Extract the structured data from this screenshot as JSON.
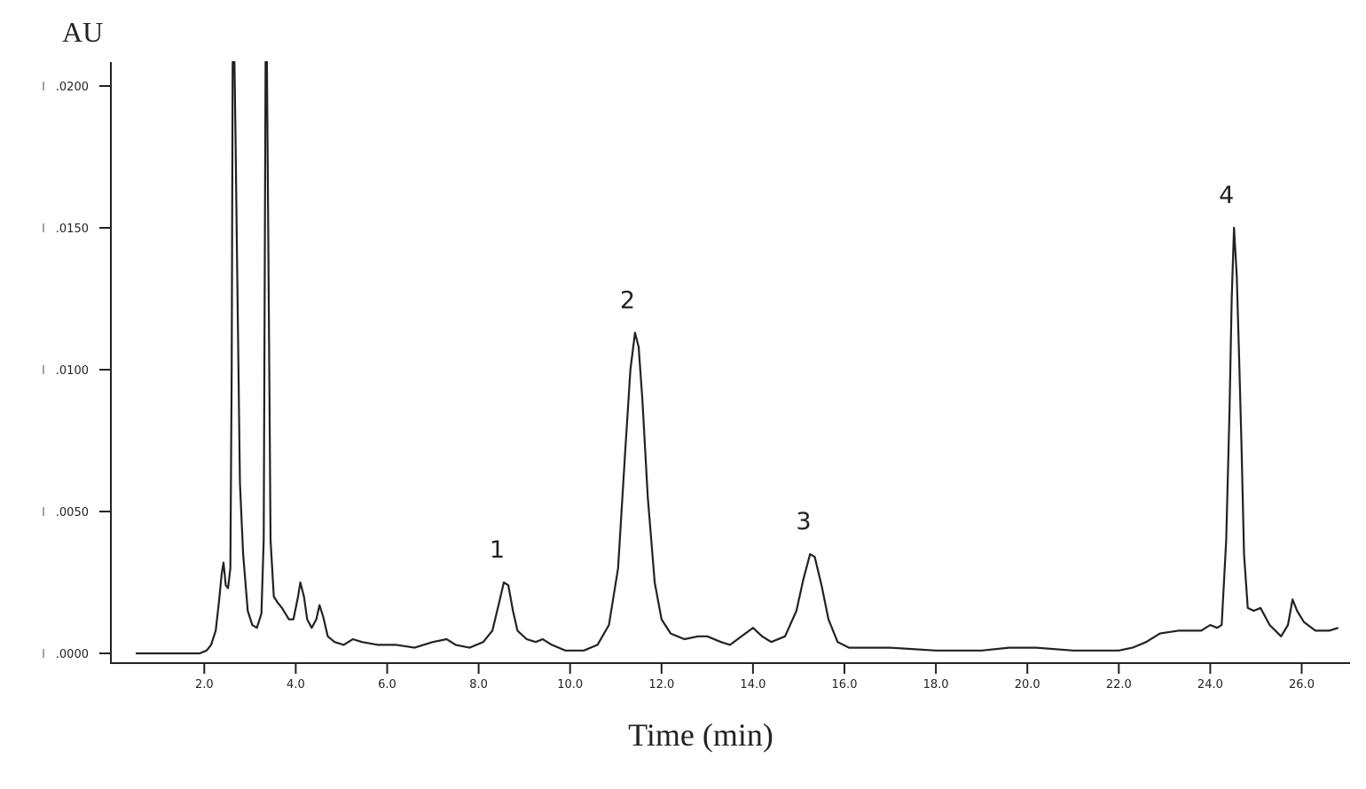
{
  "chart_data": {
    "type": "line",
    "title": "",
    "xlabel": "Time (min)",
    "ylabel": "AU",
    "xlim": [
      0.0,
      26.8
    ],
    "ylim": [
      0.0,
      0.021
    ],
    "grid": false,
    "legend": null,
    "x_ticks": [
      "2.0",
      "4.0",
      "6.0",
      "8.0",
      "10.0",
      "12.0",
      "14.0",
      "16.0",
      "18.0",
      "20.0",
      "22.0",
      "24.0",
      "26.0"
    ],
    "y_ticks": [
      "0.0000",
      "0.0050",
      "0.0100",
      "0.0150",
      "0.0200"
    ],
    "y_tick_display": [
      ".0000",
      ".0050",
      ".0100",
      ".0150",
      ".0200"
    ],
    "peak_labels": [
      {
        "label": "1",
        "time": 8.6,
        "au": 0.0025
      },
      {
        "label": "2",
        "time": 11.45,
        "au": 0.0113
      },
      {
        "label": "3",
        "time": 15.3,
        "au": 0.0035
      },
      {
        "label": "4",
        "time": 24.55,
        "au": 0.015
      }
    ],
    "series": [
      {
        "name": "chromatogram",
        "color": "#222222",
        "points": [
          [
            0.5,
            0.0
          ],
          [
            1.0,
            0.0
          ],
          [
            1.5,
            0.0
          ],
          [
            1.9,
            0.0
          ],
          [
            2.05,
            0.0001
          ],
          [
            2.15,
            0.0003
          ],
          [
            2.25,
            0.0008
          ],
          [
            2.32,
            0.0018
          ],
          [
            2.38,
            0.0028
          ],
          [
            2.42,
            0.0032
          ],
          [
            2.47,
            0.0024
          ],
          [
            2.52,
            0.0023
          ],
          [
            2.57,
            0.003
          ],
          [
            2.6,
            0.01
          ],
          [
            2.62,
            0.021
          ],
          [
            2.66,
            0.021
          ],
          [
            2.68,
            0.0185
          ],
          [
            2.72,
            0.0135
          ],
          [
            2.78,
            0.006
          ],
          [
            2.85,
            0.0035
          ],
          [
            2.95,
            0.0015
          ],
          [
            3.05,
            0.001
          ],
          [
            3.15,
            0.0009
          ],
          [
            3.25,
            0.0014
          ],
          [
            3.3,
            0.004
          ],
          [
            3.34,
            0.021
          ],
          [
            3.37,
            0.021
          ],
          [
            3.4,
            0.0145
          ],
          [
            3.45,
            0.004
          ],
          [
            3.52,
            0.002
          ],
          [
            3.6,
            0.0018
          ],
          [
            3.7,
            0.0016
          ],
          [
            3.85,
            0.0012
          ],
          [
            3.95,
            0.0012
          ],
          [
            4.05,
            0.002
          ],
          [
            4.1,
            0.0025
          ],
          [
            4.18,
            0.002
          ],
          [
            4.25,
            0.0012
          ],
          [
            4.35,
            0.0009
          ],
          [
            4.45,
            0.0012
          ],
          [
            4.52,
            0.0017
          ],
          [
            4.6,
            0.0013
          ],
          [
            4.7,
            0.0006
          ],
          [
            4.85,
            0.0004
          ],
          [
            5.05,
            0.0003
          ],
          [
            5.25,
            0.0005
          ],
          [
            5.45,
            0.0004
          ],
          [
            5.8,
            0.0003
          ],
          [
            6.2,
            0.0003
          ],
          [
            6.6,
            0.0002
          ],
          [
            7.0,
            0.0004
          ],
          [
            7.3,
            0.0005
          ],
          [
            7.5,
            0.0003
          ],
          [
            7.8,
            0.0002
          ],
          [
            8.1,
            0.0004
          ],
          [
            8.3,
            0.0008
          ],
          [
            8.45,
            0.0018
          ],
          [
            8.55,
            0.0025
          ],
          [
            8.65,
            0.0024
          ],
          [
            8.75,
            0.0015
          ],
          [
            8.85,
            0.0008
          ],
          [
            9.05,
            0.0005
          ],
          [
            9.25,
            0.0004
          ],
          [
            9.4,
            0.0005
          ],
          [
            9.6,
            0.0003
          ],
          [
            9.9,
            0.0001
          ],
          [
            10.3,
            0.0001
          ],
          [
            10.6,
            0.0003
          ],
          [
            10.85,
            0.001
          ],
          [
            11.05,
            0.003
          ],
          [
            11.2,
            0.007
          ],
          [
            11.32,
            0.01
          ],
          [
            11.42,
            0.0113
          ],
          [
            11.5,
            0.0108
          ],
          [
            11.58,
            0.009
          ],
          [
            11.7,
            0.0055
          ],
          [
            11.85,
            0.0025
          ],
          [
            12.0,
            0.0012
          ],
          [
            12.2,
            0.0007
          ],
          [
            12.5,
            0.0005
          ],
          [
            12.8,
            0.0006
          ],
          [
            13.0,
            0.0006
          ],
          [
            13.3,
            0.0004
          ],
          [
            13.5,
            0.0003
          ],
          [
            13.75,
            0.0006
          ],
          [
            14.0,
            0.0009
          ],
          [
            14.2,
            0.0006
          ],
          [
            14.4,
            0.0004
          ],
          [
            14.7,
            0.0006
          ],
          [
            14.95,
            0.0015
          ],
          [
            15.1,
            0.0026
          ],
          [
            15.25,
            0.0035
          ],
          [
            15.35,
            0.0034
          ],
          [
            15.5,
            0.0024
          ],
          [
            15.65,
            0.0012
          ],
          [
            15.85,
            0.0004
          ],
          [
            16.1,
            0.0002
          ],
          [
            17.0,
            0.0002
          ],
          [
            18.0,
            0.0001
          ],
          [
            19.0,
            0.0001
          ],
          [
            19.6,
            0.0002
          ],
          [
            20.2,
            0.0002
          ],
          [
            21.0,
            0.0001
          ],
          [
            22.0,
            0.0001
          ],
          [
            22.3,
            0.0002
          ],
          [
            22.6,
            0.0004
          ],
          [
            22.9,
            0.0007
          ],
          [
            23.3,
            0.0008
          ],
          [
            23.8,
            0.0008
          ],
          [
            24.0,
            0.001
          ],
          [
            24.15,
            0.0009
          ],
          [
            24.25,
            0.001
          ],
          [
            24.35,
            0.004
          ],
          [
            24.42,
            0.0085
          ],
          [
            24.47,
            0.0125
          ],
          [
            24.52,
            0.015
          ],
          [
            24.58,
            0.0133
          ],
          [
            24.63,
            0.0105
          ],
          [
            24.68,
            0.0075
          ],
          [
            24.74,
            0.0035
          ],
          [
            24.82,
            0.0016
          ],
          [
            24.95,
            0.0015
          ],
          [
            25.1,
            0.0016
          ],
          [
            25.3,
            0.001
          ],
          [
            25.55,
            0.0006
          ],
          [
            25.7,
            0.001
          ],
          [
            25.8,
            0.0019
          ],
          [
            25.9,
            0.0015
          ],
          [
            26.05,
            0.0011
          ],
          [
            26.3,
            0.0008
          ],
          [
            26.6,
            0.0008
          ],
          [
            26.8,
            0.0009
          ]
        ]
      }
    ]
  }
}
